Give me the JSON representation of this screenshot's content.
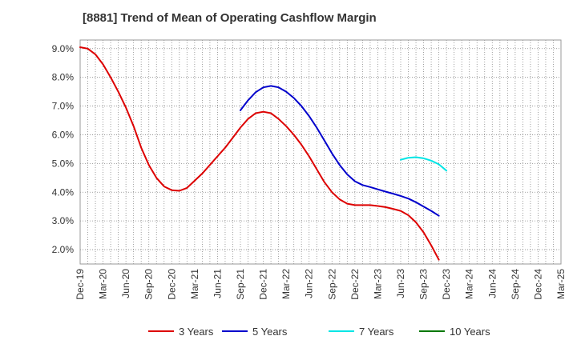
{
  "chart_data": {
    "type": "line",
    "title": "[8881]  Trend of Mean of Operating Cashflow Margin",
    "xlabel": "",
    "ylabel": "",
    "x_ticks": [
      "Dec-19",
      "Mar-20",
      "Jun-20",
      "Sep-20",
      "Dec-20",
      "Mar-21",
      "Jun-21",
      "Sep-21",
      "Dec-21",
      "Mar-22",
      "Jun-22",
      "Sep-22",
      "Dec-22",
      "Mar-23",
      "Jun-23",
      "Sep-23",
      "Dec-23",
      "Mar-24",
      "Jun-24",
      "Sep-24",
      "Dec-24",
      "Mar-25"
    ],
    "y_ticks": [
      "2.0%",
      "3.0%",
      "4.0%",
      "5.0%",
      "6.0%",
      "7.0%",
      "8.0%",
      "9.0%"
    ],
    "ylim": [
      1.5,
      9.3
    ],
    "grid": true,
    "legend_position": "bottom",
    "series": [
      {
        "name": "3 Years",
        "color": "#dd0000",
        "start_index": 0,
        "values": [
          9.05,
          9.0,
          8.8,
          8.45,
          8.0,
          7.5,
          6.95,
          6.3,
          5.55,
          4.95,
          4.5,
          4.2,
          4.07,
          4.05,
          4.15,
          4.4,
          4.65,
          4.95,
          5.25,
          5.55,
          5.9,
          6.25,
          6.55,
          6.75,
          6.8,
          6.75,
          6.55,
          6.3,
          6.0,
          5.65,
          5.25,
          4.8,
          4.35,
          4.0,
          3.75,
          3.6,
          3.55,
          3.55,
          3.55,
          3.52,
          3.48,
          3.42,
          3.35,
          3.2,
          2.95,
          2.6,
          2.15,
          1.65
        ]
      },
      {
        "name": "5 Years",
        "color": "#0000cc",
        "start_index": 21,
        "values": [
          6.85,
          7.2,
          7.48,
          7.65,
          7.7,
          7.65,
          7.5,
          7.28,
          7.0,
          6.65,
          6.25,
          5.8,
          5.35,
          4.95,
          4.62,
          4.38,
          4.25,
          4.18,
          4.1,
          4.02,
          3.95,
          3.87,
          3.78,
          3.65,
          3.5,
          3.35,
          3.18
        ]
      },
      {
        "name": "7 Years",
        "color": "#00e5e5",
        "start_index": 42,
        "values": [
          5.13,
          5.2,
          5.22,
          5.18,
          5.1,
          4.97,
          4.75
        ]
      },
      {
        "name": "10 Years",
        "color": "#007700",
        "start_index": 0,
        "values": []
      }
    ]
  }
}
